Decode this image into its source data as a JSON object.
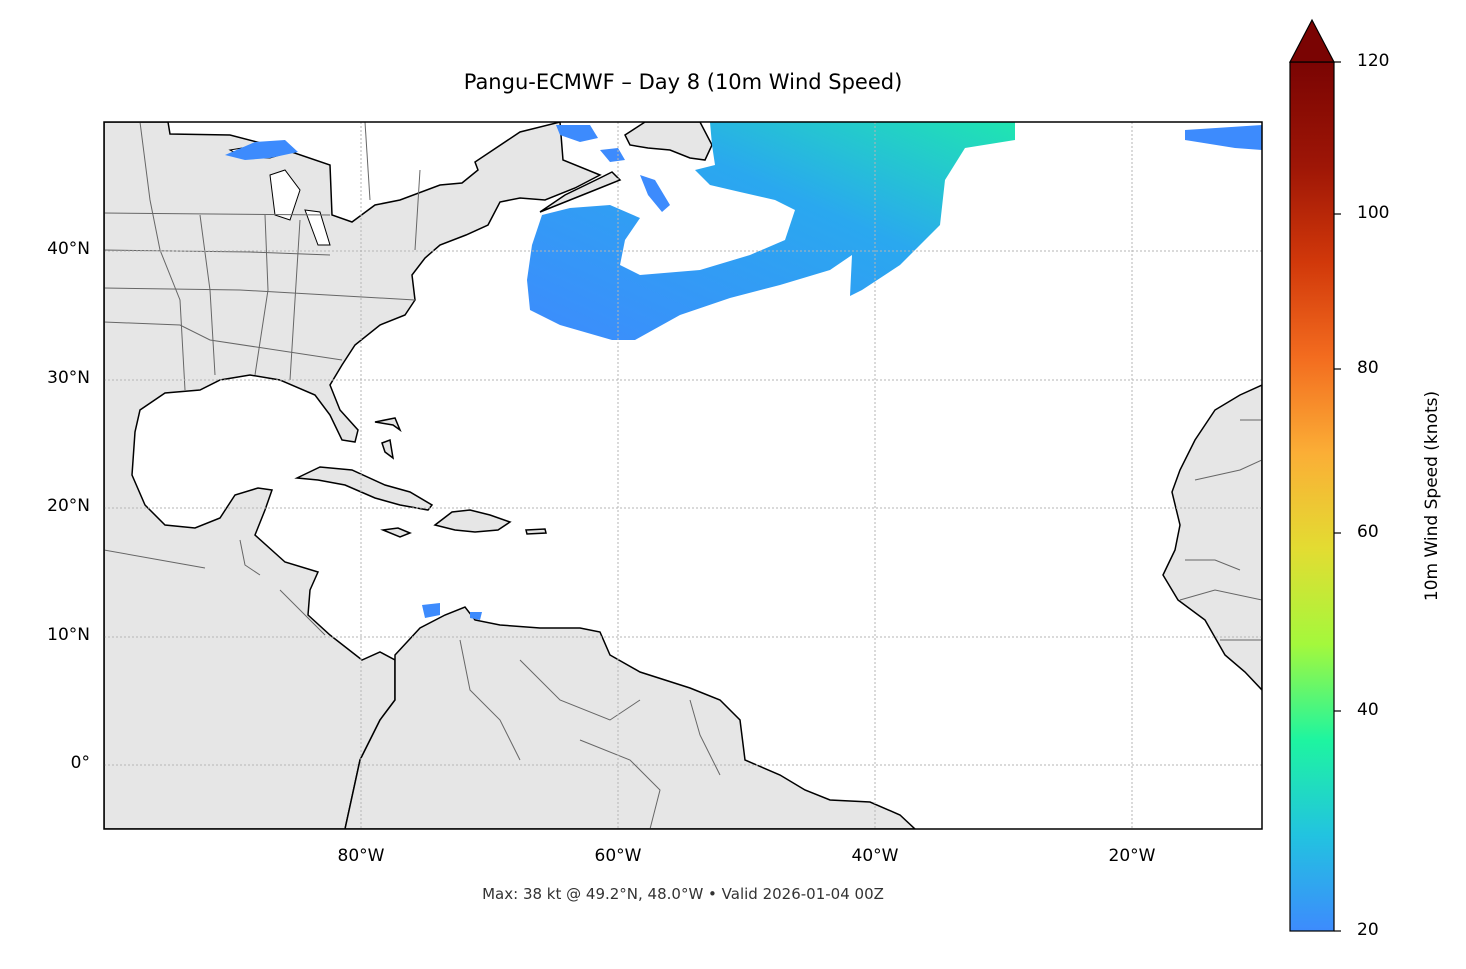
{
  "title": "Pangu-ECMWF – Day 8 (10m Wind Speed)",
  "footer": "Max: 38 kt @ 49.2°N, 48.0°W • Valid 2026-01-04 00Z",
  "lat_labels": [
    "40°N",
    "30°N",
    "20°N",
    "10°N",
    "0°"
  ],
  "lon_labels": [
    "80°W",
    "60°W",
    "40°W",
    "20°W"
  ],
  "colorbar": {
    "title": "10m Wind Speed (knots)",
    "ticks": [
      "120",
      "100",
      "80",
      "60",
      "40",
      "20"
    ],
    "min": 20,
    "max": 120,
    "extend": "max",
    "colormap": [
      "#3d8bfd",
      "#22c3e0",
      "#1ef5a0",
      "#a4f83c",
      "#e3dc32",
      "#fbae36",
      "#f36c1f",
      "#d1380a",
      "#9e1606",
      "#7a0403"
    ]
  },
  "map": {
    "extent_lon": [
      -100,
      -10
    ],
    "extent_lat": [
      -5,
      50
    ],
    "land_color": "#e6e6e6",
    "max_wind_kt": 38,
    "max_location": "49.2°N, 48.0°W"
  }
}
